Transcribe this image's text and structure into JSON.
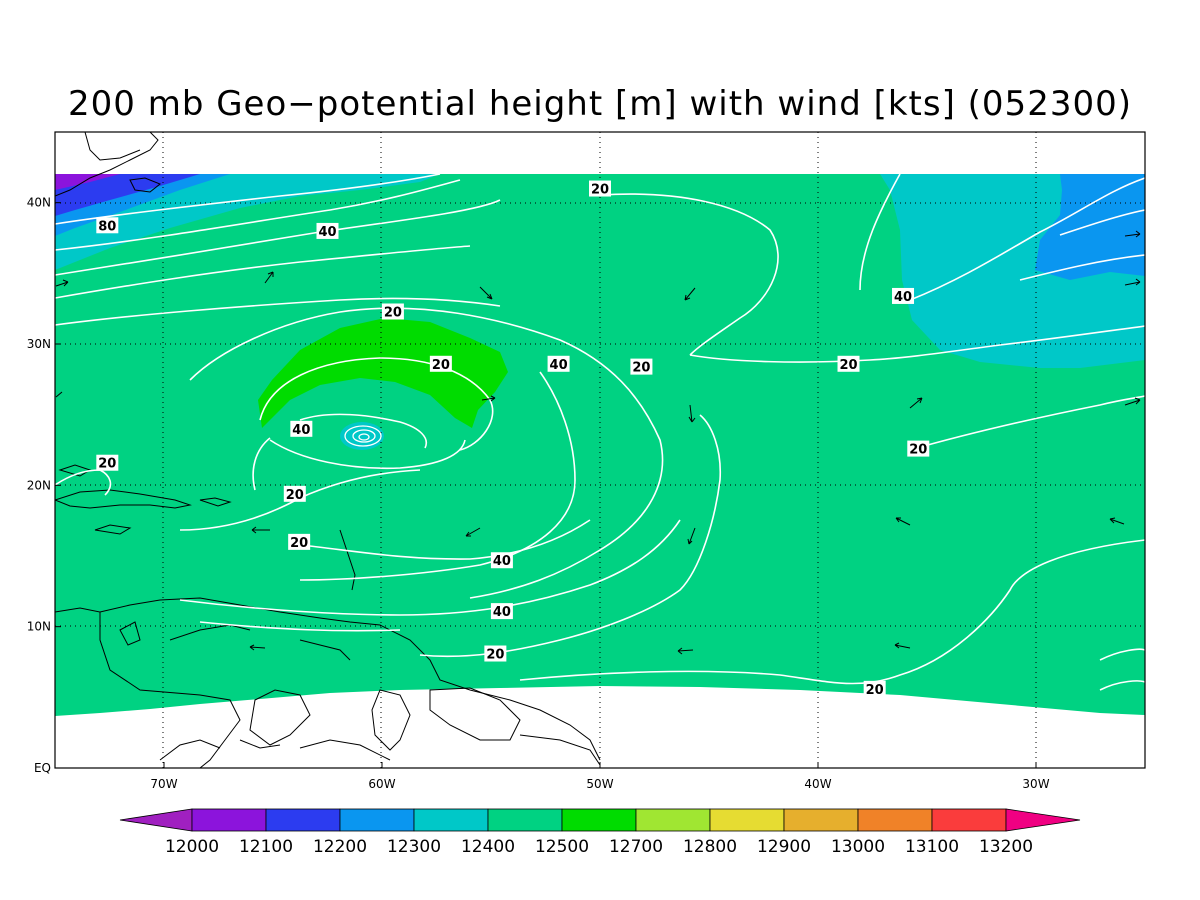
{
  "title": "200 mb Geo−potential height [m] with wind [kts] (052300)",
  "map": {
    "lon_range": [
      -75,
      -25
    ],
    "lat_range": [
      0,
      45
    ],
    "lon_ticks": [
      {
        "value": -70,
        "label": "70W"
      },
      {
        "value": -60,
        "label": "60W"
      },
      {
        "value": -50,
        "label": "50W"
      },
      {
        "value": -40,
        "label": "40W"
      },
      {
        "value": -30,
        "label": "30W"
      }
    ],
    "lat_ticks": [
      {
        "value": 0,
        "label": "EQ"
      },
      {
        "value": 10,
        "label": "10N"
      },
      {
        "value": 20,
        "label": "20N"
      },
      {
        "value": 30,
        "label": "30N"
      },
      {
        "value": 40,
        "label": "40N"
      }
    ],
    "grid": "dotted"
  },
  "contour_labels": [
    {
      "text": "80",
      "lon": -72.6,
      "lat": 38.4
    },
    {
      "text": "40",
      "lon": -62.5,
      "lat": 38.0
    },
    {
      "text": "20",
      "lon": -50.0,
      "lat": 41.0
    },
    {
      "text": "20",
      "lon": -59.5,
      "lat": 32.3
    },
    {
      "text": "20",
      "lon": -57.3,
      "lat": 28.6
    },
    {
      "text": "40",
      "lon": -51.9,
      "lat": 28.6
    },
    {
      "text": "20",
      "lon": -48.1,
      "lat": 28.4
    },
    {
      "text": "20",
      "lon": -38.6,
      "lat": 28.6
    },
    {
      "text": "40",
      "lon": -36.1,
      "lat": 33.4
    },
    {
      "text": "20",
      "lon": -35.4,
      "lat": 22.6
    },
    {
      "text": "40",
      "lon": -63.7,
      "lat": 24.0
    },
    {
      "text": "20",
      "lon": -72.6,
      "lat": 21.6
    },
    {
      "text": "20",
      "lon": -64.0,
      "lat": 19.4
    },
    {
      "text": "20",
      "lon": -63.8,
      "lat": 16.0
    },
    {
      "text": "40",
      "lon": -54.5,
      "lat": 14.7
    },
    {
      "text": "40",
      "lon": -54.5,
      "lat": 11.1
    },
    {
      "text": "20",
      "lon": -54.8,
      "lat": 8.1
    },
    {
      "text": "20",
      "lon": -37.4,
      "lat": 5.6
    }
  ],
  "colorbar": {
    "levels": [
      "12000",
      "12100",
      "12200",
      "12300",
      "12400",
      "12500",
      "12700",
      "12800",
      "12900",
      "13000",
      "13100",
      "13200"
    ],
    "colors": [
      "#a020c0",
      "#8c14dc",
      "#2c3cf0",
      "#0a96f0",
      "#00c8c8",
      "#00d282",
      "#00dc00",
      "#a0e632",
      "#e6dc32",
      "#e6af2d",
      "#f08228",
      "#fa3c3c",
      "#f00082"
    ]
  }
}
